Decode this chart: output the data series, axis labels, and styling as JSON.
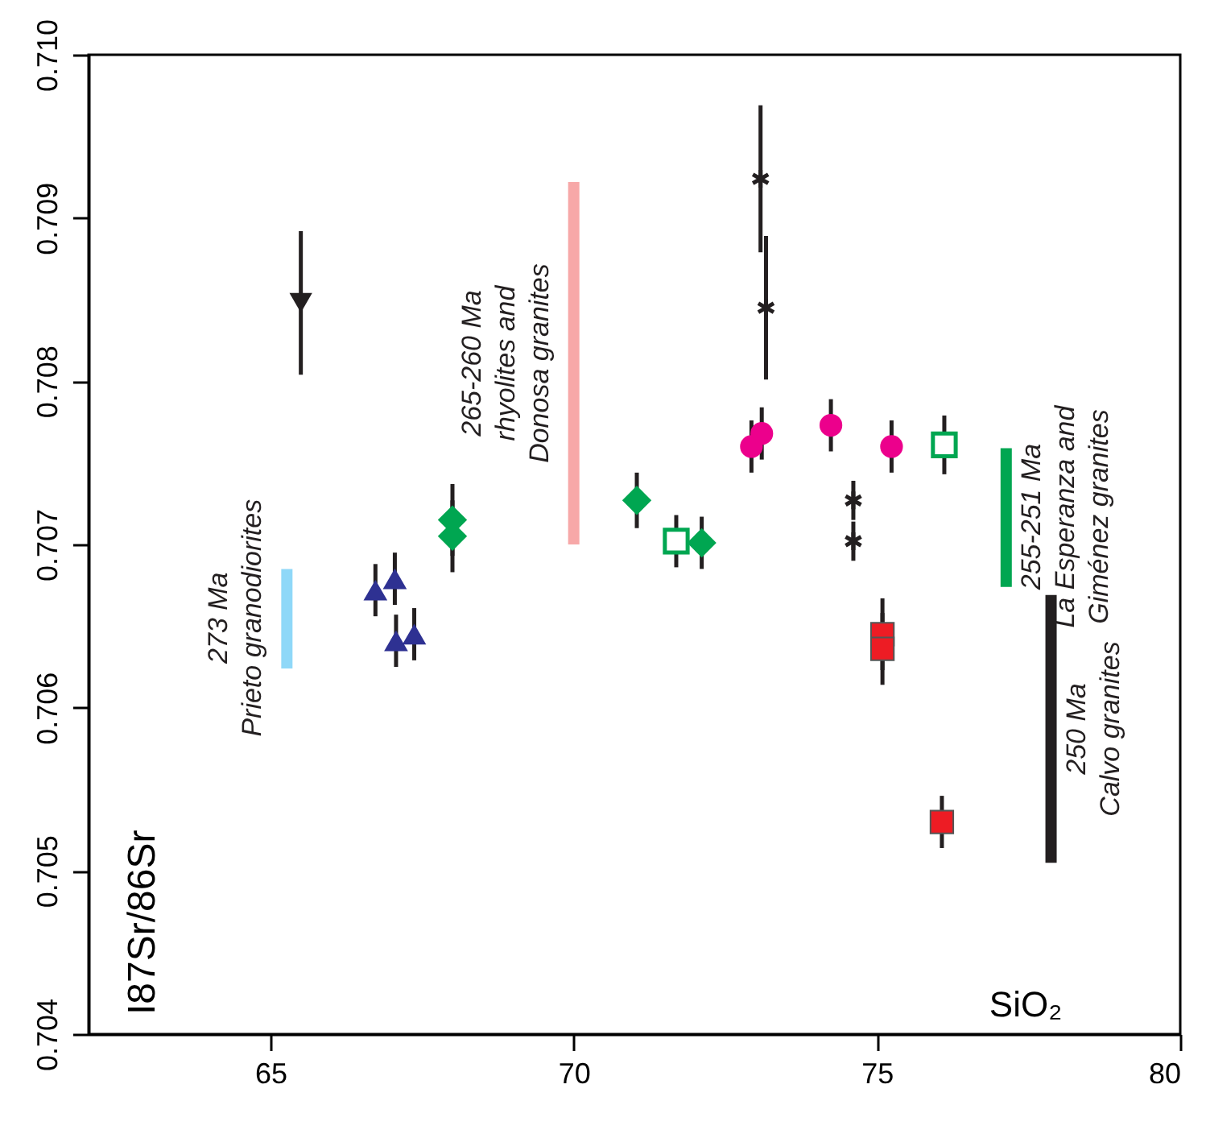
{
  "chart_data": {
    "type": "scatter",
    "xlabel": "SiO₂",
    "ylabel": "I87Sr/86Sr",
    "xlim": [
      62,
      80
    ],
    "ylim": [
      0.704,
      0.71
    ],
    "xticks": [
      65,
      70,
      75,
      80
    ],
    "yticks": [
      0.704,
      0.705,
      0.706,
      0.707,
      0.708,
      0.709,
      {
        "value": 0.71,
        "label": "0.710"
      }
    ],
    "grid": false,
    "series": [
      {
        "marker": "triangle-down",
        "color": "#231f20",
        "x": [
          65.5
        ],
        "values": [
          0.70848
        ],
        "errors": [
          0.00044
        ]
      },
      {
        "marker": "triangle",
        "color": "#2e3192",
        "x": [
          66.73,
          67.05,
          67.07,
          67.37
        ],
        "values": [
          0.70672,
          0.70679,
          0.70641,
          0.70645
        ],
        "errors": [
          0.00016,
          0.00016,
          0.00016,
          0.00016
        ]
      },
      {
        "marker": "diamond",
        "color": "#00a651",
        "x": [
          68.0,
          68.0,
          71.04,
          72.11
        ],
        "values": [
          0.70715,
          0.70705,
          0.70727,
          0.70701
        ],
        "errors": [
          0.00022,
          0.00022,
          0.00017,
          0.00016
        ]
      },
      {
        "marker": "square-open",
        "color": "#00a651",
        "x": [
          71.69,
          76.11
        ],
        "values": [
          0.70702,
          0.70761
        ],
        "errors": [
          0.00016,
          0.00018
        ]
      },
      {
        "marker": "cross",
        "color": "#231f20",
        "x": [
          73.08,
          73.17,
          74.61,
          74.61
        ],
        "values": [
          0.70924,
          0.70845,
          0.70727,
          0.70702
        ],
        "errors": [
          0.00045,
          0.00044,
          0.00012,
          0.00012
        ]
      },
      {
        "marker": "circle",
        "color": "#ec008c",
        "x": [
          72.93,
          73.1,
          74.24,
          75.24
        ],
        "values": [
          0.7076,
          0.70768,
          0.70773,
          0.7076
        ],
        "errors": [
          0.00016,
          0.00016,
          0.00016,
          0.00016
        ]
      },
      {
        "marker": "square",
        "color": "#ed1c24",
        "x": [
          75.09,
          75.09,
          76.07
        ],
        "values": [
          0.70645,
          0.70636,
          0.7053
        ],
        "errors": [
          0.00022,
          0.00022,
          0.00016
        ]
      },
      {
        "type": "line",
        "marker": "none",
        "color": "#8fd8f8",
        "x": [
          65.27,
          65.27
        ],
        "values": [
          0.70624,
          0.70685
        ]
      },
      {
        "type": "line",
        "marker": "none",
        "color": "#f7a8a8",
        "x": [
          70.0,
          70.0
        ],
        "values": [
          0.707,
          0.70922
        ]
      },
      {
        "type": "line",
        "marker": "none",
        "color": "#00a651",
        "x": [
          77.13,
          77.13
        ],
        "values": [
          0.70674,
          0.70759
        ]
      },
      {
        "type": "line",
        "marker": "none",
        "color": "#231f20",
        "x": [
          77.87,
          77.87
        ],
        "values": [
          0.70505,
          0.70669
        ]
      }
    ],
    "annotations": [
      {
        "text": "273 Ma\nPrieto granodiorites",
        "x": 65.27,
        "y": 0.70655
      },
      {
        "text": "265-260 Ma\nrhyolites and\nDonosa granites",
        "x": 70.0,
        "y": 0.70811
      },
      {
        "text": "255-251 Ma\nLa Esperanza and\nGiménez granites",
        "x": 77.13,
        "y": 0.70717
      },
      {
        "text": "250 Ma\nCalvo granites",
        "x": 77.87,
        "y": 0.70587
      }
    ]
  }
}
